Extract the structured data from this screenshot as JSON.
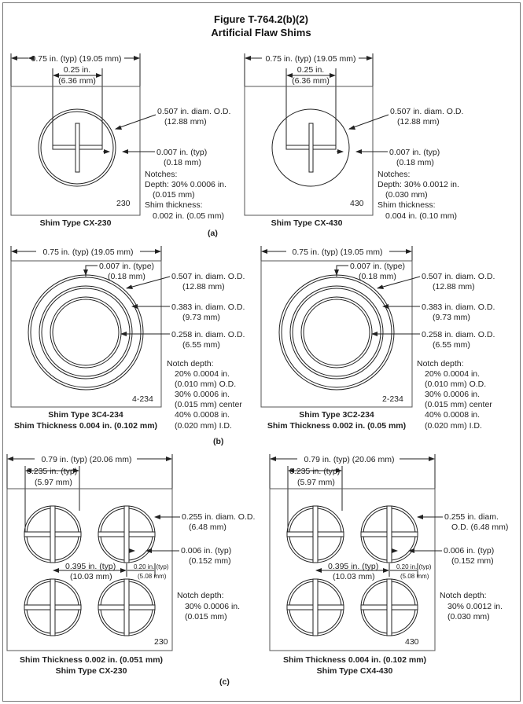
{
  "figure": {
    "number": "Figure T-764.2(b)(2)",
    "title": "Artificial Flaw Shims"
  },
  "section_a": {
    "label": "(a)",
    "left": {
      "width_dim": "0.75 in. (typ) (19.05 mm)",
      "offset_dim_in": "0.25 in.",
      "offset_dim_mm": "(6.36 mm)",
      "diam_in": "0.507 in. diam. O.D.",
      "diam_mm": "(12.88 mm)",
      "notch_w_in": "0.007 in. (typ)",
      "notch_w_mm": "(0.18 mm)",
      "notches_label": "Notches:",
      "depth": "Depth: 30% 0.0006 in.",
      "depth_mm": "(0.015 mm)",
      "thickness_label": "Shim thickness:",
      "thickness": "0.002 in. (0.05 mm)",
      "id_mark": "230",
      "caption": "Shim Type CX-230"
    },
    "right": {
      "width_dim": "0.75 in. (typ) (19.05 mm)",
      "offset_dim_in": "0.25 in.",
      "offset_dim_mm": "(6.36 mm)",
      "diam_in": "0.507 in. diam. O.D.",
      "diam_mm": "(12.88 mm)",
      "notch_w_in": "0.007 in. (typ)",
      "notch_w_mm": "(0.18 mm)",
      "notches_label": "Notches:",
      "depth": "Depth: 30% 0.0012 in.",
      "depth_mm": "(0.030 mm)",
      "thickness_label": "Shim thickness:",
      "thickness": "0.004 in. (0.10 mm)",
      "id_mark": "430",
      "caption": "Shim Type CX-430"
    }
  },
  "section_b": {
    "label": "(b)",
    "left": {
      "width_dim": "0.75 in. (typ) (19.05 mm)",
      "notch_in": "0.007 in. (type)",
      "notch_mm": "(0.18 mm)",
      "od1_in": "0.507 in. diam. O.D.",
      "od1_mm": "(12.88 mm)",
      "od2_in": "0.383 in. diam. O.D.",
      "od2_mm": "(9.73 mm)",
      "od3_in": "0.258 in. diam. O.D.",
      "od3_mm": "(6.55 mm)",
      "notch_depth_label": "Notch depth:",
      "nd1": "20% 0.0004 in.",
      "nd2": "(0.010 mm) O.D.",
      "nd3": "30% 0.0006 in.",
      "nd4": "(0.015 mm) center",
      "nd5": "40% 0.0008 in.",
      "nd6": "(0.020 mm) I.D.",
      "id_mark": "4-234",
      "caption1": "Shim Type 3C4-234",
      "caption2": "Shim Thickness 0.004 in. (0.102 mm)"
    },
    "right": {
      "width_dim": "0.75 in. (typ) (19.05 mm)",
      "notch_in": "0.007 in. (type)",
      "notch_mm": "(0.18 mm)",
      "od1_in": "0.507 in. diam. O.D.",
      "od1_mm": "(12.88 mm)",
      "od2_in": "0.383 in. diam. O.D.",
      "od2_mm": "(9.73 mm)",
      "od3_in": "0.258 in. diam. O.D.",
      "od3_mm": "(6.55 mm)",
      "notch_depth_label": "Notch depth:",
      "nd1": "20% 0.0004 in.",
      "nd2": "(0.010 mm) O.D.",
      "nd3": "30% 0.0006 in.",
      "nd4": "(0.015 mm) center",
      "nd5": "40% 0.0008 in.",
      "nd6": "(0.020 mm) I.D.",
      "id_mark": "2-234",
      "caption1": "Shim Type 3C2-234",
      "caption2": "Shim Thickness 0.002 in. (0.05 mm)"
    }
  },
  "section_c": {
    "label": "(c)",
    "left": {
      "width_dim": "0.79 in. (typ) (20.06 mm)",
      "offset_in": "0.235 in. (typ)",
      "offset_mm": "(5.97 mm)",
      "diam1": "0.255 in. diam. O.D.",
      "diam2": "(6.48 mm)",
      "notch_in": "0.006 in. (typ)",
      "notch_mm": "(0.152 mm)",
      "spacing_in": "0.395 in. (typ)",
      "spacing_mm": "(10.03 mm)",
      "small_in": "0.20 in. (typ)",
      "small_mm": "(5.08 mm)",
      "notch_depth_label": "Notch depth:",
      "nd1": "30% 0.0006 in.",
      "nd2": "(0.015 mm)",
      "id_mark": "230",
      "caption1": "Shim Thickness 0.002 in. (0.051 mm)",
      "caption2": "Shim Type CX-230"
    },
    "right": {
      "width_dim": "0.79 in. (typ) (20.06 mm)",
      "offset_in": "0.235 in. (typ)",
      "offset_mm": "(5.97 mm)",
      "diam1": "0.255 in. diam.",
      "diam2": "O.D. (6.48 mm)",
      "notch_in": "0.006 in. (typ)",
      "notch_mm": "(0.152 mm)",
      "spacing_in": "0.395 in. (typ)",
      "spacing_mm": "(10.03 mm)",
      "small_in": "0.20 in. (typ)",
      "small_mm": "(5.08 mm)",
      "notch_depth_label": "Notch depth:",
      "nd1": "30% 0.0012 in.",
      "nd2": "(0.030 mm)",
      "id_mark": "430",
      "caption1": "Shim Thickness 0.004 in. (0.102 mm)",
      "caption2": "Shim Type CX4-430"
    }
  }
}
